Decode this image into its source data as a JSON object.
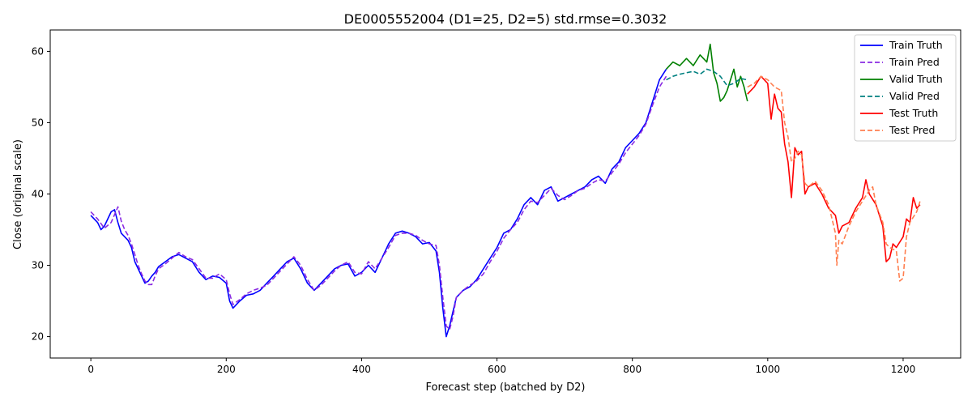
{
  "chart_data": {
    "type": "line",
    "title": "DE0005552004 (D1=25, D2=5) std.rmse=0.3032",
    "xlabel": "Forecast step (batched by D2)",
    "ylabel": "Close (original scale)",
    "xlim": [
      -60,
      1285
    ],
    "ylim": [
      17,
      63
    ],
    "xticks": [
      0,
      200,
      400,
      600,
      800,
      1000,
      1200
    ],
    "yticks": [
      20,
      30,
      40,
      50,
      60
    ],
    "legend_position": "top-right",
    "grid": false,
    "series": [
      {
        "name": "Train Truth",
        "color": "#0000ff",
        "dash": "solid",
        "x": [
          0,
          10,
          15,
          20,
          30,
          35,
          40,
          45,
          50,
          55,
          60,
          65,
          70,
          75,
          80,
          85,
          90,
          95,
          100,
          110,
          120,
          130,
          140,
          150,
          160,
          170,
          180,
          190,
          200,
          205,
          210,
          220,
          230,
          240,
          250,
          260,
          270,
          280,
          290,
          300,
          310,
          320,
          330,
          340,
          350,
          360,
          370,
          380,
          390,
          400,
          410,
          420,
          430,
          440,
          450,
          460,
          470,
          480,
          490,
          500,
          510,
          515,
          520,
          525,
          530,
          535,
          540,
          550,
          560,
          570,
          580,
          590,
          600,
          610,
          620,
          630,
          640,
          650,
          660,
          670,
          680,
          690,
          700,
          710,
          720,
          730,
          740,
          750,
          760,
          770,
          780,
          790,
          800,
          810,
          820,
          830,
          840,
          850
        ],
        "y": [
          37.0,
          36.0,
          35.0,
          35.5,
          37.5,
          37.8,
          36.0,
          34.5,
          34.0,
          33.5,
          32.5,
          30.5,
          29.5,
          28.5,
          27.5,
          27.8,
          28.5,
          29.0,
          29.8,
          30.5,
          31.2,
          31.5,
          31.0,
          30.5,
          29.0,
          28.0,
          28.5,
          28.3,
          27.5,
          25.0,
          24.0,
          25.0,
          25.8,
          26.0,
          26.5,
          27.5,
          28.5,
          29.5,
          30.5,
          31.0,
          29.5,
          27.5,
          26.5,
          27.5,
          28.5,
          29.5,
          30.0,
          30.2,
          28.5,
          29.0,
          30.0,
          29.0,
          31.0,
          33.0,
          34.5,
          34.8,
          34.5,
          34.0,
          33.0,
          33.2,
          32.0,
          29.0,
          24.0,
          20.0,
          21.5,
          23.5,
          25.5,
          26.5,
          27.0,
          28.0,
          29.5,
          31.0,
          32.5,
          34.5,
          35.0,
          36.5,
          38.5,
          39.5,
          38.5,
          40.5,
          41.0,
          39.0,
          39.5,
          40.0,
          40.5,
          41.0,
          42.0,
          42.5,
          41.5,
          43.5,
          44.5,
          46.5,
          47.5,
          48.5,
          50.0,
          53.0,
          56.0,
          57.5
        ]
      },
      {
        "name": "Train Pred",
        "color": "#8a2be2",
        "dash": "dashed",
        "x": [
          0,
          10,
          20,
          30,
          40,
          45,
          50,
          55,
          60,
          65,
          70,
          75,
          80,
          85,
          90,
          95,
          100,
          110,
          120,
          130,
          140,
          150,
          160,
          170,
          180,
          190,
          200,
          205,
          210,
          220,
          230,
          240,
          250,
          260,
          270,
          280,
          290,
          300,
          310,
          320,
          330,
          340,
          350,
          360,
          370,
          380,
          390,
          400,
          410,
          420,
          430,
          440,
          450,
          460,
          470,
          480,
          490,
          500,
          510,
          515,
          520,
          525,
          530,
          535,
          540,
          550,
          560,
          570,
          580,
          590,
          600,
          610,
          620,
          630,
          640,
          650,
          660,
          670,
          680,
          690,
          700,
          710,
          720,
          730,
          740,
          750,
          760,
          770,
          780,
          790,
          800,
          810,
          820,
          830,
          840,
          850
        ],
        "y": [
          37.5,
          36.5,
          35.2,
          36.0,
          38.2,
          36.2,
          35.0,
          34.2,
          33.0,
          31.5,
          30.0,
          28.8,
          27.8,
          27.3,
          27.3,
          28.5,
          29.5,
          30.2,
          31.0,
          31.8,
          31.2,
          30.8,
          29.5,
          28.2,
          28.2,
          28.8,
          28.0,
          26.0,
          24.5,
          25.2,
          26.0,
          26.5,
          26.8,
          27.2,
          28.2,
          29.2,
          30.2,
          31.2,
          30.0,
          28.0,
          26.5,
          27.2,
          28.2,
          29.2,
          30.0,
          30.5,
          29.0,
          28.8,
          30.5,
          29.5,
          31.0,
          32.5,
          34.2,
          34.5,
          34.5,
          34.2,
          33.5,
          33.0,
          32.8,
          30.0,
          25.5,
          21.5,
          21.0,
          22.8,
          25.5,
          26.5,
          27.2,
          27.8,
          28.8,
          30.5,
          32.0,
          33.8,
          35.0,
          36.0,
          37.8,
          39.0,
          38.8,
          39.8,
          40.8,
          39.8,
          39.2,
          39.8,
          40.5,
          40.8,
          41.5,
          42.0,
          41.8,
          43.0,
          44.2,
          45.8,
          47.0,
          48.2,
          49.8,
          52.5,
          55.0,
          56.5
        ]
      },
      {
        "name": "Valid Truth",
        "color": "#008000",
        "dash": "solid",
        "x": [
          850,
          860,
          870,
          880,
          890,
          900,
          910,
          915,
          920,
          925,
          930,
          935,
          940,
          950,
          955,
          960,
          965,
          970
        ],
        "y": [
          57.5,
          58.5,
          58.0,
          59.0,
          58.0,
          59.5,
          58.5,
          61.0,
          57.0,
          55.5,
          53.0,
          53.5,
          54.5,
          57.5,
          55.0,
          56.5,
          55.0,
          53.0
        ]
      },
      {
        "name": "Valid Pred",
        "color": "#008080",
        "dash": "dashed",
        "x": [
          850,
          860,
          870,
          880,
          890,
          900,
          910,
          920,
          930,
          940,
          950,
          960,
          970
        ],
        "y": [
          56.0,
          56.5,
          56.8,
          57.0,
          57.2,
          56.8,
          57.5,
          57.2,
          56.5,
          55.2,
          55.5,
          56.2,
          56.0
        ]
      },
      {
        "name": "Test Truth",
        "color": "#ff0000",
        "dash": "solid",
        "x": [
          970,
          980,
          990,
          1000,
          1005,
          1010,
          1015,
          1020,
          1025,
          1030,
          1035,
          1040,
          1045,
          1050,
          1055,
          1060,
          1070,
          1080,
          1090,
          1100,
          1105,
          1110,
          1120,
          1130,
          1140,
          1145,
          1150,
          1160,
          1170,
          1175,
          1180,
          1185,
          1190,
          1200,
          1205,
          1210,
          1215,
          1220,
          1225
        ],
        "y": [
          54.0,
          55.0,
          56.5,
          55.5,
          50.5,
          54.0,
          52.0,
          51.5,
          47.0,
          44.5,
          39.5,
          46.5,
          45.5,
          46.0,
          40.0,
          41.0,
          41.5,
          40.0,
          38.0,
          37.0,
          34.5,
          35.5,
          36.0,
          38.0,
          39.5,
          42.0,
          40.0,
          38.5,
          35.5,
          30.5,
          31.0,
          33.0,
          32.5,
          34.0,
          36.5,
          36.0,
          39.5,
          38.0,
          38.5
        ]
      },
      {
        "name": "Test Pred",
        "color": "#ff7f50",
        "dash": "dashed",
        "x": [
          970,
          980,
          990,
          1000,
          1010,
          1020,
          1025,
          1030,
          1035,
          1040,
          1045,
          1050,
          1055,
          1060,
          1070,
          1080,
          1090,
          1100,
          1102,
          1105,
          1110,
          1120,
          1130,
          1140,
          1150,
          1155,
          1160,
          1170,
          1175,
          1180,
          1190,
          1195,
          1200,
          1205,
          1210,
          1220,
          1225
        ],
        "y": [
          55.0,
          55.5,
          56.5,
          56.0,
          55.0,
          54.5,
          50.0,
          48.0,
          44.5,
          45.0,
          46.0,
          45.5,
          41.5,
          41.0,
          41.8,
          40.5,
          38.5,
          34.5,
          30.0,
          33.5,
          33.0,
          35.5,
          37.5,
          39.0,
          40.5,
          41.0,
          38.5,
          36.0,
          33.0,
          32.5,
          32.0,
          27.8,
          28.2,
          34.0,
          36.0,
          37.5,
          39.0
        ]
      }
    ]
  }
}
